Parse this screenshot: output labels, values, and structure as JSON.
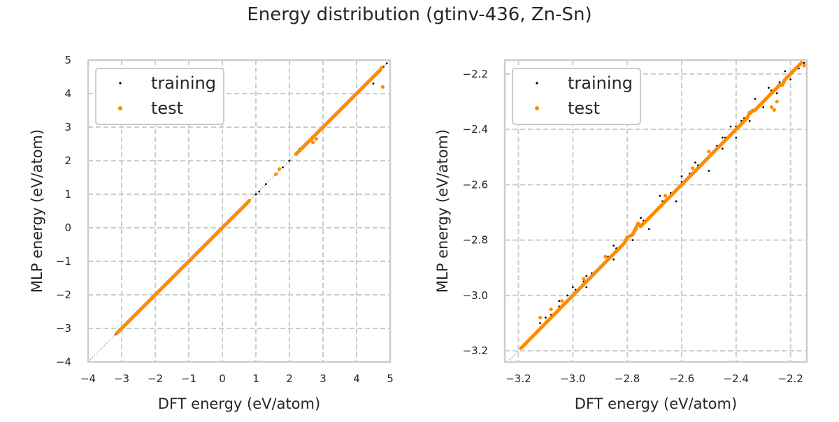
{
  "figure": {
    "title": "Energy distribution (gtinv-436, Zn-Sn)"
  },
  "colors": {
    "training": "#000000",
    "test": "#ff8c00",
    "grid": "#cccccc",
    "frame": "#cccccc",
    "diagonal": "#999999"
  },
  "chart_data": [
    {
      "type": "scatter",
      "title": "",
      "xlabel": "DFT energy (eV/atom)",
      "ylabel": "MLP energy (eV/atom)",
      "xlim": [
        -4,
        5
      ],
      "ylim": [
        -4,
        5
      ],
      "xticks": [
        "−4",
        "−3",
        "−2",
        "−1",
        "0",
        "1",
        "2",
        "3",
        "4",
        "5"
      ],
      "yticks": [
        "−4",
        "−3",
        "−2",
        "−1",
        "0",
        "1",
        "2",
        "3",
        "4",
        "5"
      ],
      "xtick_values": [
        -4,
        -3,
        -2,
        -1,
        0,
        1,
        2,
        3,
        4,
        5
      ],
      "ytick_values": [
        -4,
        -3,
        -2,
        -1,
        0,
        1,
        2,
        3,
        4,
        5
      ],
      "grid": true,
      "legend": "upper-left",
      "diagonal": true,
      "series": [
        {
          "name": "training",
          "color": "#000000",
          "points": [
            [
              -3.18,
              -3.18
            ],
            [
              -3.1,
              -3.1
            ],
            [
              -3.0,
              -3.0
            ],
            [
              -2.8,
              -2.8
            ],
            [
              -2.6,
              -2.6
            ],
            [
              -2.4,
              -2.4
            ],
            [
              -2.2,
              -2.2
            ],
            [
              -2.0,
              -2.0
            ],
            [
              -1.7,
              -1.7
            ],
            [
              -1.4,
              -1.4
            ],
            [
              -1.1,
              -1.1
            ],
            [
              -0.8,
              -0.8
            ],
            [
              -0.5,
              -0.5
            ],
            [
              -0.2,
              -0.2
            ],
            [
              0.1,
              0.1
            ],
            [
              0.4,
              0.4
            ],
            [
              0.7,
              0.7
            ],
            [
              1.0,
              1.0
            ],
            [
              1.1,
              1.08
            ],
            [
              1.3,
              1.3
            ],
            [
              1.8,
              1.8
            ],
            [
              2.0,
              2.0
            ],
            [
              2.3,
              2.35
            ],
            [
              2.5,
              2.5
            ],
            [
              2.9,
              2.9
            ],
            [
              3.3,
              3.3
            ],
            [
              3.5,
              3.5
            ],
            [
              3.8,
              3.8
            ],
            [
              4.1,
              4.1
            ],
            [
              4.3,
              4.3
            ],
            [
              4.5,
              4.3
            ],
            [
              4.6,
              4.6
            ],
            [
              4.8,
              4.8
            ],
            [
              4.9,
              4.9
            ]
          ]
        },
        {
          "name": "test",
          "color": "#ff8c00",
          "points": [
            [
              -3.15,
              -3.15
            ],
            [
              -3.05,
              -3.05
            ],
            [
              -2.95,
              -2.95
            ],
            [
              -2.85,
              -2.85
            ],
            [
              -2.7,
              -2.7
            ],
            [
              -2.5,
              -2.5
            ],
            [
              -2.3,
              -2.3
            ],
            [
              -2.1,
              -2.1
            ],
            [
              -1.9,
              -1.9
            ],
            [
              -1.6,
              -1.6
            ],
            [
              -1.3,
              -1.3
            ],
            [
              -1.0,
              -1.0
            ],
            [
              -0.7,
              -0.7
            ],
            [
              -0.4,
              -0.4
            ],
            [
              -0.1,
              -0.1
            ],
            [
              0.2,
              0.2
            ],
            [
              0.5,
              0.5
            ],
            [
              0.8,
              0.8
            ],
            [
              1.6,
              1.6
            ],
            [
              1.7,
              1.75
            ],
            [
              2.2,
              2.2
            ],
            [
              2.4,
              2.4
            ],
            [
              2.7,
              2.7
            ],
            [
              2.8,
              2.65
            ],
            [
              2.7,
              2.55
            ],
            [
              3.0,
              3.0
            ],
            [
              3.4,
              3.4
            ],
            [
              3.6,
              3.6
            ],
            [
              3.9,
              3.9
            ],
            [
              4.2,
              4.2
            ],
            [
              4.6,
              4.6
            ],
            [
              4.7,
              4.7
            ],
            [
              4.75,
              4.78
            ],
            [
              4.78,
              4.2
            ]
          ]
        }
      ]
    },
    {
      "type": "scatter",
      "title": "",
      "xlabel": "DFT energy (eV/atom)",
      "ylabel": "MLP energy (eV/atom)",
      "xlim": [
        -3.25,
        -2.14
      ],
      "ylim": [
        -3.24,
        -2.15
      ],
      "xticks": [
        "−3.2",
        "−3.0",
        "−2.8",
        "−2.6",
        "−2.4",
        "−2.2"
      ],
      "yticks": [
        "−3.2",
        "−3.0",
        "−2.8",
        "−2.6",
        "−2.4",
        "−2.2"
      ],
      "xtick_values": [
        -3.2,
        -3.0,
        -2.8,
        -2.6,
        -2.4,
        -2.2
      ],
      "ytick_values": [
        -3.2,
        -3.0,
        -2.8,
        -2.6,
        -2.4,
        -2.2
      ],
      "grid": true,
      "legend": "upper-left",
      "diagonal": true,
      "series": [
        {
          "name": "training",
          "color": "#000000",
          "points": [
            [
              -3.15,
              -3.15
            ],
            [
              -3.12,
              -3.1
            ],
            [
              -3.08,
              -3.07
            ],
            [
              -3.05,
              -3.04
            ],
            [
              -3.02,
              -3.0
            ],
            [
              -2.99,
              -2.98
            ],
            [
              -2.96,
              -2.95
            ],
            [
              -2.93,
              -2.92
            ],
            [
              -2.9,
              -2.9
            ],
            [
              -2.87,
              -2.86
            ],
            [
              -2.84,
              -2.83
            ],
            [
              -2.8,
              -2.79
            ],
            [
              -2.77,
              -2.76
            ],
            [
              -2.74,
              -2.73
            ],
            [
              -2.7,
              -2.7
            ],
            [
              -2.67,
              -2.66
            ],
            [
              -2.64,
              -2.63
            ],
            [
              -2.6,
              -2.59
            ],
            [
              -2.57,
              -2.56
            ],
            [
              -2.54,
              -2.53
            ],
            [
              -2.5,
              -2.5
            ],
            [
              -2.47,
              -2.46
            ],
            [
              -2.44,
              -2.43
            ],
            [
              -2.4,
              -2.39
            ],
            [
              -2.37,
              -2.36
            ],
            [
              -2.34,
              -2.33
            ],
            [
              -2.3,
              -2.3
            ],
            [
              -2.27,
              -2.26
            ],
            [
              -2.24,
              -2.23
            ],
            [
              -2.2,
              -2.2
            ],
            [
              -2.17,
              -2.18
            ],
            [
              -2.15,
              -2.16
            ],
            [
              -3.1,
              -3.08
            ],
            [
              -3.05,
              -3.02
            ],
            [
              -3.0,
              -2.97
            ],
            [
              -2.95,
              -2.93
            ],
            [
              -2.85,
              -2.82
            ],
            [
              -2.75,
              -2.72
            ],
            [
              -2.68,
              -2.64
            ],
            [
              -2.6,
              -2.57
            ],
            [
              -2.55,
              -2.52
            ],
            [
              -2.45,
              -2.43
            ],
            [
              -2.42,
              -2.39
            ],
            [
              -2.38,
              -2.37
            ],
            [
              -2.33,
              -2.29
            ],
            [
              -2.28,
              -2.25
            ],
            [
              -2.22,
              -2.19
            ],
            [
              -2.16,
              -2.15
            ],
            [
              -2.72,
              -2.76
            ],
            [
              -2.62,
              -2.66
            ],
            [
              -2.5,
              -2.55
            ],
            [
              -2.45,
              -2.47
            ],
            [
              -2.4,
              -2.43
            ],
            [
              -2.35,
              -2.37
            ],
            [
              -2.3,
              -2.32
            ],
            [
              -2.25,
              -2.27
            ],
            [
              -2.2,
              -2.22
            ],
            [
              -2.95,
              -2.97
            ],
            [
              -2.85,
              -2.87
            ],
            [
              -2.78,
              -2.8
            ]
          ]
        },
        {
          "name": "test",
          "color": "#ff8c00",
          "points": [
            [
              -3.19,
              -3.19
            ],
            [
              -3.17,
              -3.17
            ],
            [
              -3.15,
              -3.15
            ],
            [
              -3.13,
              -3.13
            ],
            [
              -3.11,
              -3.11
            ],
            [
              -3.09,
              -3.09
            ],
            [
              -3.07,
              -3.07
            ],
            [
              -3.05,
              -3.05
            ],
            [
              -3.03,
              -3.03
            ],
            [
              -3.0,
              -3.0
            ],
            [
              -2.98,
              -2.98
            ],
            [
              -2.95,
              -2.95
            ],
            [
              -2.92,
              -2.92
            ],
            [
              -2.9,
              -2.9
            ],
            [
              -2.87,
              -2.87
            ],
            [
              -2.84,
              -2.84
            ],
            [
              -2.81,
              -2.81
            ],
            [
              -2.78,
              -2.78
            ],
            [
              -2.75,
              -2.75
            ],
            [
              -2.72,
              -2.72
            ],
            [
              -2.69,
              -2.69
            ],
            [
              -2.66,
              -2.66
            ],
            [
              -2.63,
              -2.63
            ],
            [
              -2.6,
              -2.6
            ],
            [
              -2.57,
              -2.57
            ],
            [
              -2.54,
              -2.54
            ],
            [
              -2.51,
              -2.51
            ],
            [
              -2.48,
              -2.48
            ],
            [
              -2.45,
              -2.45
            ],
            [
              -2.42,
              -2.42
            ],
            [
              -2.39,
              -2.39
            ],
            [
              -2.36,
              -2.36
            ],
            [
              -2.33,
              -2.33
            ],
            [
              -2.3,
              -2.3
            ],
            [
              -2.27,
              -2.27
            ],
            [
              -2.24,
              -2.24
            ],
            [
              -2.21,
              -2.21
            ],
            [
              -2.18,
              -2.18
            ],
            [
              -2.16,
              -2.16
            ],
            [
              -2.15,
              -2.17
            ],
            [
              -3.12,
              -3.08
            ],
            [
              -3.08,
              -3.05
            ],
            [
              -3.04,
              -3.02
            ],
            [
              -2.96,
              -2.94
            ],
            [
              -2.88,
              -2.86
            ],
            [
              -2.8,
              -2.79
            ],
            [
              -2.76,
              -2.74
            ],
            [
              -2.66,
              -2.64
            ],
            [
              -2.56,
              -2.54
            ],
            [
              -2.5,
              -2.48
            ],
            [
              -2.27,
              -2.32
            ],
            [
              -2.26,
              -2.33
            ],
            [
              -2.25,
              -2.3
            ],
            [
              -2.23,
              -2.24
            ],
            [
              -2.22,
              -2.22
            ],
            [
              -2.35,
              -2.34
            ]
          ]
        }
      ]
    }
  ]
}
